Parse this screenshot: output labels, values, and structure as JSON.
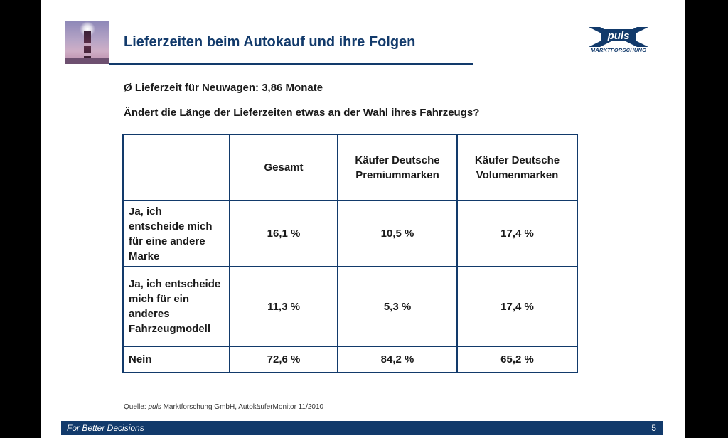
{
  "slide": {
    "title": "Lieferzeiten beim Autokauf und ihre Folgen",
    "logo": {
      "name": "puls",
      "subtitle": "MARKTFORSCHUNG"
    },
    "line1": "Ø Lieferzeit für Neuwagen: 3,86 Monate",
    "line2": "Ändert die Länge der Lieferzeiten etwas an der Wahl ihres Fahrzeugs?"
  },
  "table": {
    "headers": [
      "",
      "Gesamt",
      "Käufer Deutsche Premiummarken",
      "Käufer Deutsche Volumenmarken"
    ],
    "rows": [
      {
        "label": "Ja, ich entscheide mich für eine andere Marke",
        "values": [
          "16,1 %",
          "10,5 %",
          "17,4 %"
        ]
      },
      {
        "label": "Ja, ich entscheide mich für ein anderes Fahrzeugmodell",
        "values": [
          "11,3 %",
          "5,3 %",
          "17,4 %"
        ]
      },
      {
        "label": "Nein",
        "values": [
          "72,6 %",
          "84,2 %",
          "65,2 %"
        ]
      }
    ]
  },
  "source": {
    "prefix": "Quelle: ",
    "brand": "puls",
    "rest": " Marktforschung GmbH, AutokäuferMonitor 11/2010"
  },
  "footer": {
    "tagline": "For Better Decisions",
    "page_number": "5"
  },
  "colors": {
    "primary": "#123a6b",
    "background": "#000000",
    "slide": "#ffffff"
  }
}
